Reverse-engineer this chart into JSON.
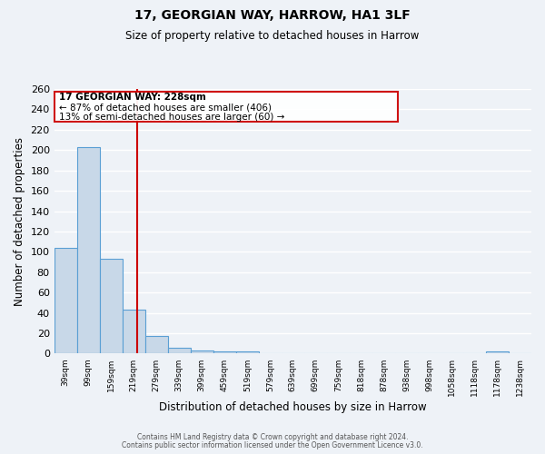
{
  "title": "17, GEORGIAN WAY, HARROW, HA1 3LF",
  "subtitle": "Size of property relative to detached houses in Harrow",
  "xlabel": "Distribution of detached houses by size in Harrow",
  "ylabel": "Number of detached properties",
  "bar_color": "#c8d8e8",
  "bar_edge_color": "#5a9fd4",
  "bin_labels": [
    "39sqm",
    "99sqm",
    "159sqm",
    "219sqm",
    "279sqm",
    "339sqm",
    "399sqm",
    "459sqm",
    "519sqm",
    "579sqm",
    "639sqm",
    "699sqm",
    "759sqm",
    "818sqm",
    "878sqm",
    "938sqm",
    "998sqm",
    "1058sqm",
    "1118sqm",
    "1178sqm",
    "1238sqm"
  ],
  "bar_heights": [
    104,
    203,
    93,
    43,
    17,
    6,
    3,
    2,
    2,
    0,
    0,
    0,
    0,
    0,
    0,
    0,
    0,
    0,
    0,
    2,
    0
  ],
  "ylim": [
    0,
    260
  ],
  "yticks": [
    0,
    20,
    40,
    60,
    80,
    100,
    120,
    140,
    160,
    180,
    200,
    220,
    240,
    260
  ],
  "red_line_x": 3.15,
  "annotation_text_line1": "17 GEORGIAN WAY: 228sqm",
  "annotation_text_line2": "← 87% of detached houses are smaller (406)",
  "annotation_text_line3": "13% of semi-detached houses are larger (60) →",
  "footer_line1": "Contains HM Land Registry data © Crown copyright and database right 2024.",
  "footer_line2": "Contains public sector information licensed under the Open Government Licence v3.0.",
  "background_color": "#eef2f7",
  "grid_color": "#ffffff",
  "red_color": "#cc0000"
}
